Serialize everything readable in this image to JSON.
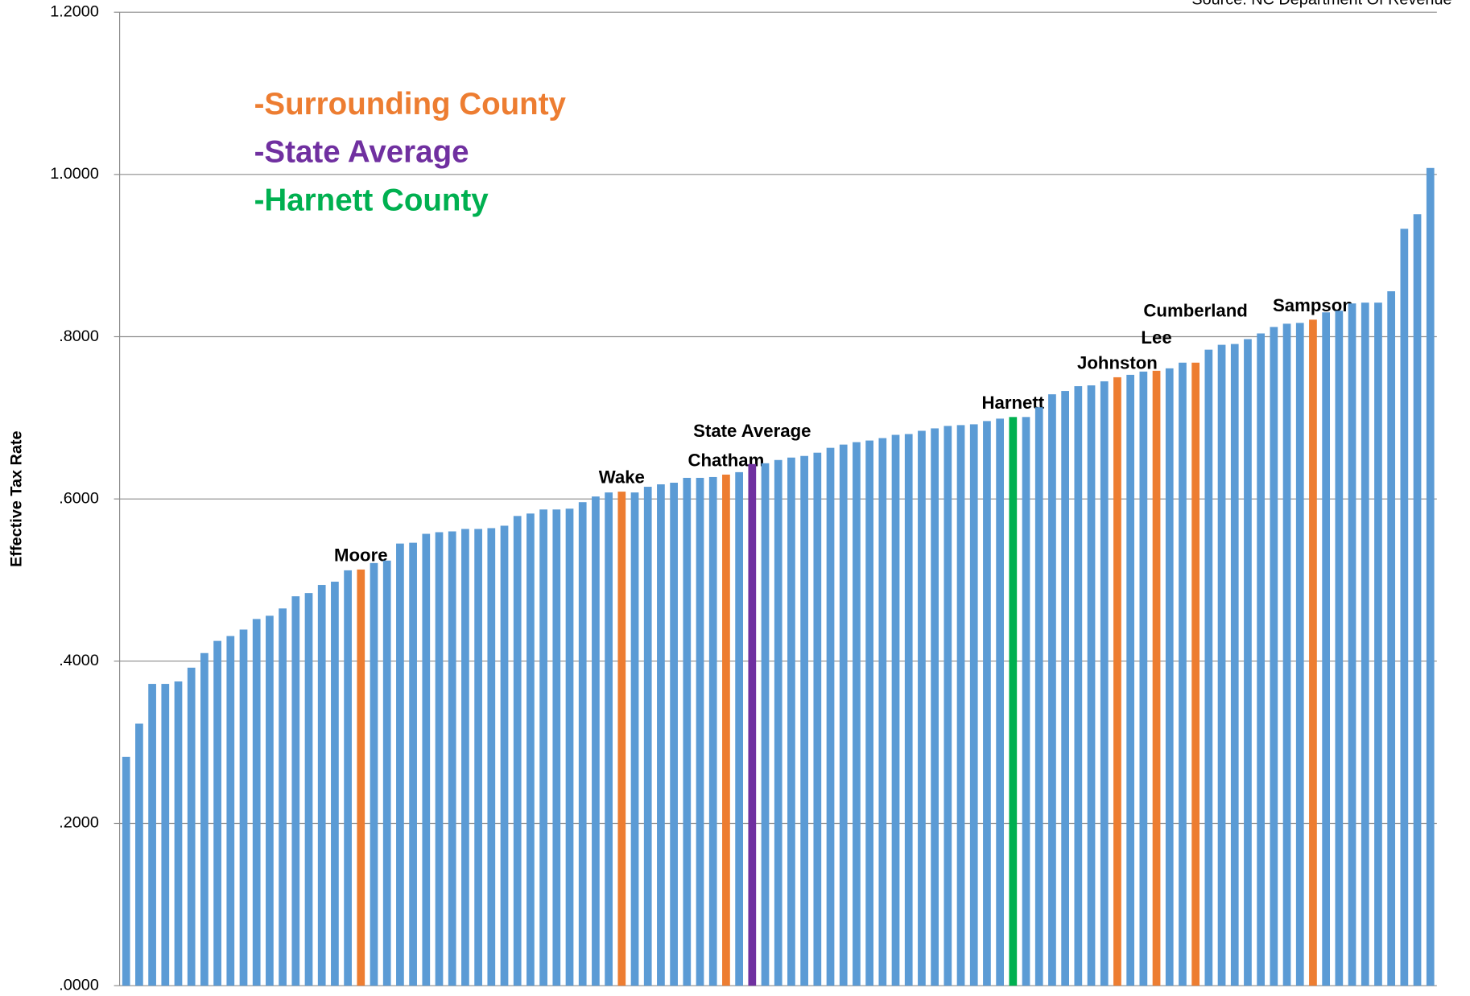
{
  "chart_data": {
    "type": "bar",
    "source": "Source: NC Department Of Revenue",
    "y_axis_label": "Effective Tax Rate",
    "legend": [
      {
        "name": "-Surrounding County",
        "color": "#ed7d31"
      },
      {
        "name": "-State Average",
        "color": "#7030a0"
      },
      {
        "name": "-Harnett County",
        "color": "#00b050"
      }
    ],
    "categories": [
      null,
      null,
      null,
      null,
      null,
      null,
      null,
      null,
      null,
      null,
      null,
      null,
      null,
      null,
      null,
      null,
      null,
      null,
      "Moore",
      null,
      null,
      null,
      null,
      null,
      null,
      null,
      null,
      null,
      null,
      null,
      null,
      null,
      null,
      null,
      null,
      null,
      null,
      null,
      "Wake",
      null,
      null,
      null,
      null,
      null,
      null,
      null,
      "Chatham",
      null,
      "State Average",
      null,
      null,
      null,
      null,
      null,
      null,
      null,
      null,
      null,
      null,
      null,
      null,
      null,
      null,
      null,
      null,
      null,
      null,
      null,
      "Harnett",
      null,
      null,
      null,
      null,
      null,
      null,
      null,
      "Johnston",
      null,
      null,
      "Lee",
      null,
      null,
      "Cumberland",
      null,
      null,
      null,
      null,
      null,
      null,
      null,
      null,
      "Sampson",
      null,
      null,
      null,
      null,
      null,
      null,
      null,
      null,
      null
    ],
    "values": [
      0.282,
      0.323,
      0.372,
      0.372,
      0.375,
      0.392,
      0.41,
      0.425,
      0.431,
      0.439,
      0.452,
      0.456,
      0.465,
      0.48,
      0.484,
      0.494,
      0.498,
      0.512,
      0.513,
      0.521,
      0.524,
      0.545,
      0.546,
      0.557,
      0.559,
      0.56,
      0.563,
      0.563,
      0.564,
      0.567,
      0.579,
      0.582,
      0.587,
      0.587,
      0.588,
      0.596,
      0.603,
      0.608,
      0.609,
      0.608,
      0.615,
      0.618,
      0.62,
      0.626,
      0.626,
      0.627,
      0.63,
      0.633,
      0.643,
      0.644,
      0.648,
      0.651,
      0.653,
      0.657,
      0.663,
      0.667,
      0.67,
      0.672,
      0.675,
      0.679,
      0.68,
      0.684,
      0.687,
      0.69,
      0.691,
      0.692,
      0.696,
      0.699,
      0.701,
      0.701,
      0.713,
      0.729,
      0.733,
      0.739,
      0.74,
      0.745,
      0.75,
      0.753,
      0.757,
      0.758,
      0.761,
      0.768,
      0.768,
      0.784,
      0.79,
      0.791,
      0.797,
      0.804,
      0.812,
      0.816,
      0.817,
      0.821,
      0.83,
      0.832,
      0.841,
      0.842,
      0.842,
      0.856,
      0.933,
      0.951,
      1.008
    ],
    "colors": [
      "#5b9bd5",
      "#5b9bd5",
      "#5b9bd5",
      "#5b9bd5",
      "#5b9bd5",
      "#5b9bd5",
      "#5b9bd5",
      "#5b9bd5",
      "#5b9bd5",
      "#5b9bd5",
      "#5b9bd5",
      "#5b9bd5",
      "#5b9bd5",
      "#5b9bd5",
      "#5b9bd5",
      "#5b9bd5",
      "#5b9bd5",
      "#5b9bd5",
      "#ed7d31",
      "#5b9bd5",
      "#5b9bd5",
      "#5b9bd5",
      "#5b9bd5",
      "#5b9bd5",
      "#5b9bd5",
      "#5b9bd5",
      "#5b9bd5",
      "#5b9bd5",
      "#5b9bd5",
      "#5b9bd5",
      "#5b9bd5",
      "#5b9bd5",
      "#5b9bd5",
      "#5b9bd5",
      "#5b9bd5",
      "#5b9bd5",
      "#5b9bd5",
      "#5b9bd5",
      "#ed7d31",
      "#5b9bd5",
      "#5b9bd5",
      "#5b9bd5",
      "#5b9bd5",
      "#5b9bd5",
      "#5b9bd5",
      "#5b9bd5",
      "#ed7d31",
      "#5b9bd5",
      "#7030a0",
      "#5b9bd5",
      "#5b9bd5",
      "#5b9bd5",
      "#5b9bd5",
      "#5b9bd5",
      "#5b9bd5",
      "#5b9bd5",
      "#5b9bd5",
      "#5b9bd5",
      "#5b9bd5",
      "#5b9bd5",
      "#5b9bd5",
      "#5b9bd5",
      "#5b9bd5",
      "#5b9bd5",
      "#5b9bd5",
      "#5b9bd5",
      "#5b9bd5",
      "#5b9bd5",
      "#00b050",
      "#5b9bd5",
      "#5b9bd5",
      "#5b9bd5",
      "#5b9bd5",
      "#5b9bd5",
      "#5b9bd5",
      "#5b9bd5",
      "#ed7d31",
      "#5b9bd5",
      "#5b9bd5",
      "#ed7d31",
      "#5b9bd5",
      "#5b9bd5",
      "#ed7d31",
      "#5b9bd5",
      "#5b9bd5",
      "#5b9bd5",
      "#5b9bd5",
      "#5b9bd5",
      "#5b9bd5",
      "#5b9bd5",
      "#5b9bd5",
      "#ed7d31",
      "#5b9bd5",
      "#5b9bd5",
      "#5b9bd5",
      "#5b9bd5",
      "#5b9bd5",
      "#5b9bd5",
      "#5b9bd5",
      "#5b9bd5",
      "#5b9bd5"
    ],
    "ylim": [
      0,
      1.2
    ],
    "yticks": [
      {
        "value": 0,
        "label": ".0000"
      },
      {
        "value": 0.2,
        "label": ".2000"
      },
      {
        "value": 0.4,
        "label": ".4000"
      },
      {
        "value": 0.6,
        "label": ".6000"
      },
      {
        "value": 0.8,
        "label": ".8000"
      },
      {
        "value": 1.0,
        "label": "1.0000"
      },
      {
        "value": 1.2,
        "label": "1.2000"
      }
    ],
    "grid": true
  }
}
